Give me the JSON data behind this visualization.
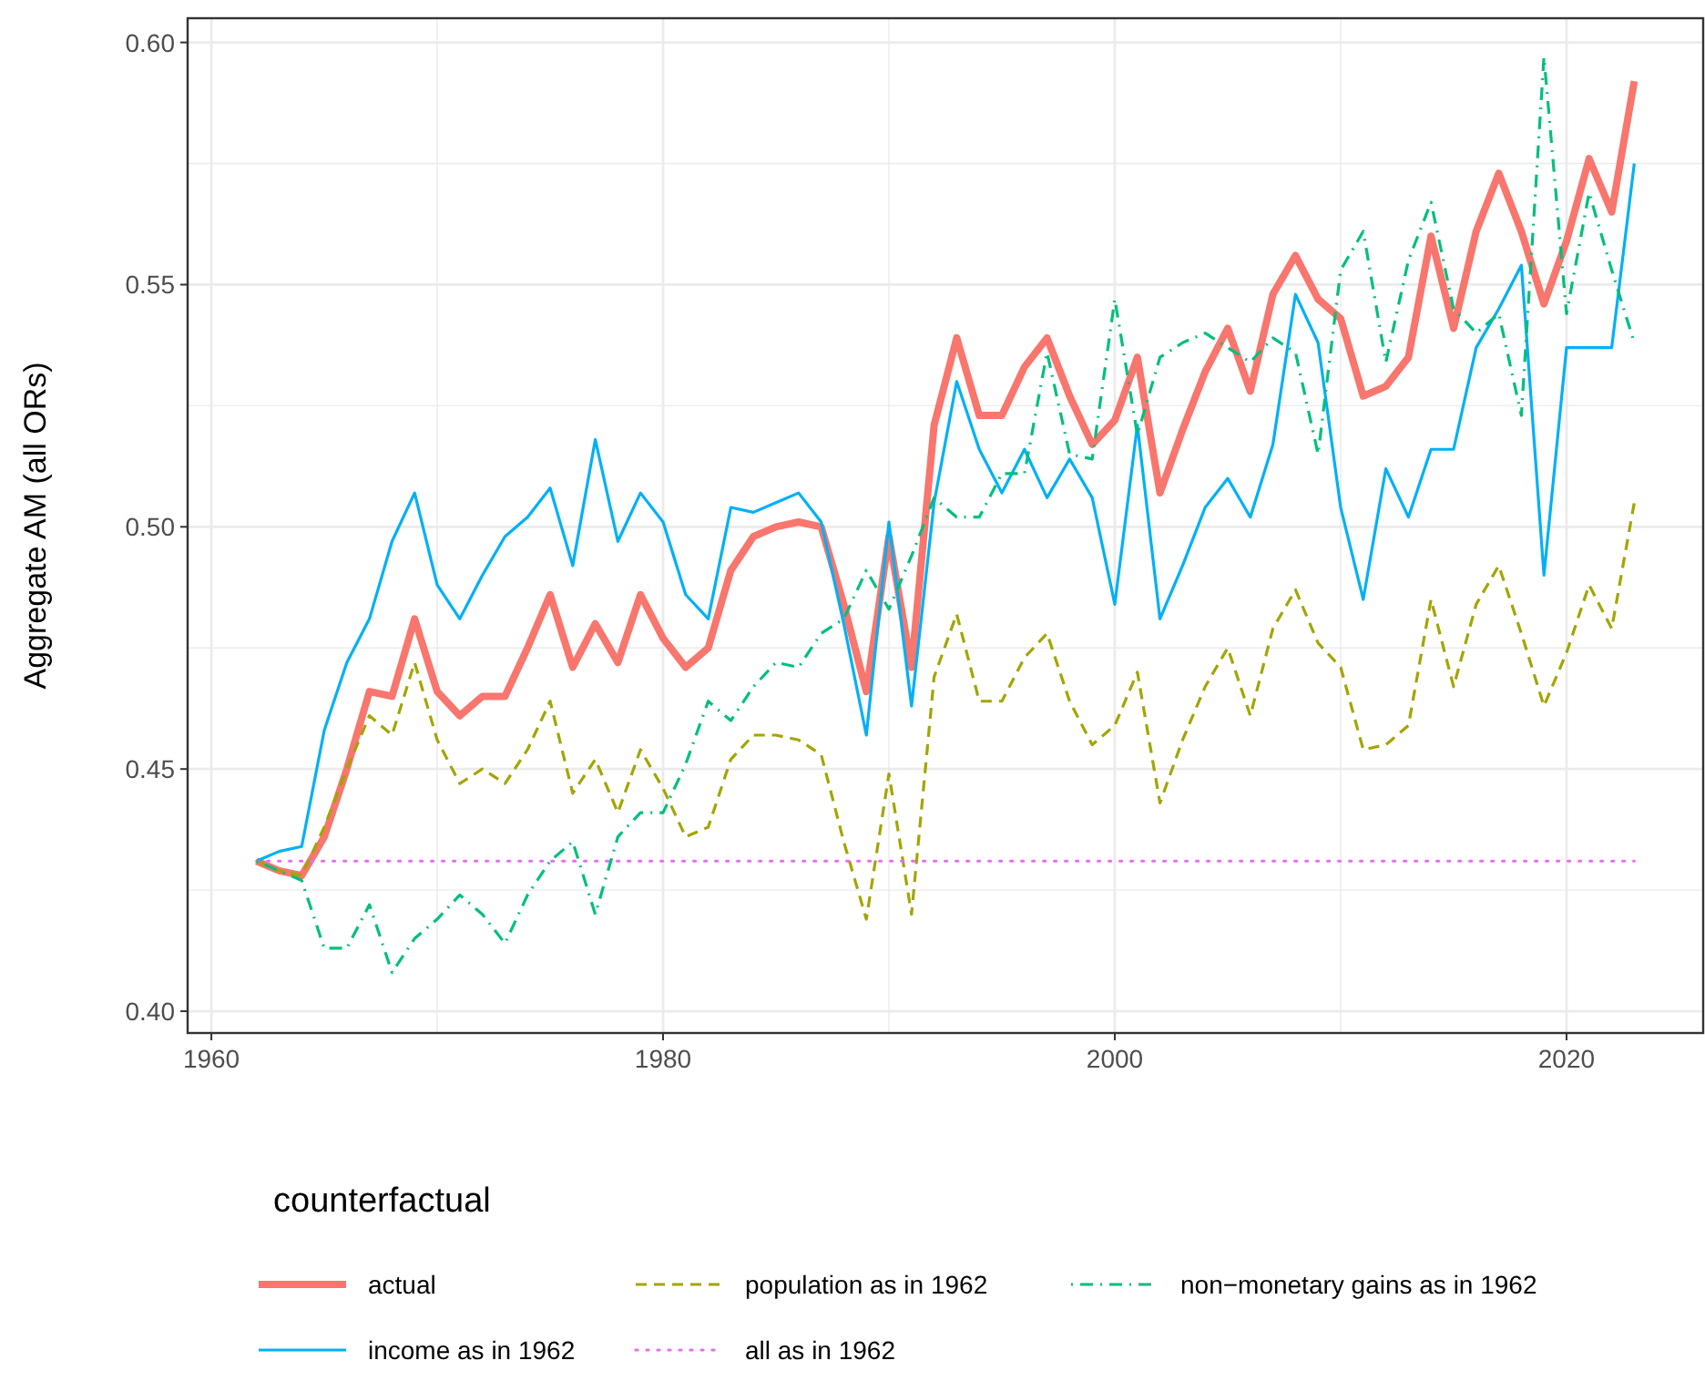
{
  "chart_data": {
    "type": "line",
    "ylabel": "Aggregate AM (all ORs)",
    "legend_title": "counterfactual",
    "legend": "bottom",
    "grid": true,
    "marker": "none",
    "x": [
      1962,
      1963,
      1964,
      1965,
      1966,
      1967,
      1968,
      1969,
      1970,
      1971,
      1972,
      1973,
      1974,
      1975,
      1976,
      1977,
      1978,
      1979,
      1980,
      1981,
      1982,
      1983,
      1984,
      1985,
      1986,
      1987,
      1988,
      1989,
      1990,
      1991,
      1992,
      1993,
      1994,
      1995,
      1996,
      1997,
      1998,
      1999,
      2000,
      2001,
      2002,
      2003,
      2004,
      2005,
      2006,
      2007,
      2008,
      2009,
      2010,
      2011,
      2012,
      2013,
      2014,
      2015,
      2016,
      2017,
      2018,
      2019,
      2020,
      2021,
      2022,
      2023
    ],
    "xlim": [
      1958.95,
      2026.05
    ],
    "xticks": [
      1960,
      {
        "value": 1970,
        "label": null
      },
      1980,
      {
        "value": 1990,
        "label": null
      },
      2000,
      {
        "value": 2010,
        "label": null
      },
      2020
    ],
    "ylim": [
      0.3955,
      0.605
    ],
    "yticks": [
      {
        "value": 0.4,
        "label": "0.40"
      },
      {
        "value": 0.425,
        "label": null
      },
      {
        "value": 0.45,
        "label": "0.45"
      },
      {
        "value": 0.475,
        "label": null
      },
      {
        "value": 0.5,
        "label": "0.50"
      },
      {
        "value": 0.525,
        "label": null
      },
      {
        "value": 0.55,
        "label": "0.55"
      },
      {
        "value": 0.575,
        "label": null
      },
      {
        "value": 0.6,
        "label": "0.60"
      }
    ],
    "series": [
      {
        "name": "actual",
        "color": "#f8766d",
        "line_style": "solid",
        "values": [
          0.431,
          0.429,
          0.428,
          0.436,
          0.45,
          0.466,
          0.465,
          0.481,
          0.466,
          0.461,
          0.465,
          0.465,
          0.475,
          0.486,
          0.471,
          0.48,
          0.472,
          0.486,
          0.477,
          0.471,
          0.475,
          0.491,
          0.498,
          0.5,
          0.501,
          0.5,
          0.484,
          0.466,
          0.498,
          0.471,
          0.521,
          0.539,
          0.523,
          0.523,
          0.533,
          0.539,
          0.527,
          0.517,
          0.522,
          0.535,
          0.507,
          0.52,
          0.532,
          0.541,
          0.528,
          0.548,
          0.556,
          0.547,
          0.543,
          0.527,
          0.529,
          0.535,
          0.56,
          0.541,
          0.561,
          0.573,
          0.561,
          0.546,
          0.559,
          0.576,
          0.565,
          0.592
        ]
      },
      {
        "name": "income as in 1962",
        "color": "#00b0f6",
        "line_style": "solid",
        "values": [
          0.431,
          0.433,
          0.434,
          0.458,
          0.472,
          0.481,
          0.497,
          0.507,
          0.488,
          0.481,
          0.49,
          0.498,
          0.502,
          0.508,
          0.492,
          0.518,
          0.497,
          0.507,
          0.501,
          0.486,
          0.481,
          0.504,
          0.503,
          0.505,
          0.507,
          0.501,
          0.48,
          0.457,
          0.501,
          0.463,
          0.505,
          0.53,
          0.516,
          0.507,
          0.516,
          0.506,
          0.514,
          0.506,
          0.484,
          0.521,
          0.481,
          0.492,
          0.504,
          0.51,
          0.502,
          0.517,
          0.548,
          0.538,
          0.504,
          0.485,
          0.512,
          0.502,
          0.516,
          0.516,
          0.537,
          0.545,
          0.554,
          0.49,
          0.537,
          0.537,
          0.537,
          0.575
        ]
      },
      {
        "name": "population as in 1962",
        "color": "#a3a500",
        "line_style": "dashed",
        "values": [
          0.431,
          0.429,
          0.428,
          0.438,
          0.45,
          0.461,
          0.457,
          0.472,
          0.456,
          0.447,
          0.45,
          0.447,
          0.454,
          0.464,
          0.445,
          0.452,
          0.441,
          0.454,
          0.446,
          0.436,
          0.438,
          0.452,
          0.457,
          0.457,
          0.456,
          0.453,
          0.435,
          0.419,
          0.449,
          0.42,
          0.469,
          0.482,
          0.464,
          0.464,
          0.473,
          0.478,
          0.464,
          0.455,
          0.459,
          0.47,
          0.443,
          0.456,
          0.467,
          0.475,
          0.461,
          0.479,
          0.487,
          0.476,
          0.471,
          0.454,
          0.455,
          0.459,
          0.485,
          0.467,
          0.484,
          0.492,
          0.478,
          0.463,
          0.474,
          0.488,
          0.479,
          0.505
        ]
      },
      {
        "name": "all as in 1962",
        "color": "#e76bf3",
        "line_style": "dotted",
        "values": [
          0.431,
          0.431,
          0.431,
          0.431,
          0.431,
          0.431,
          0.431,
          0.431,
          0.431,
          0.431,
          0.431,
          0.431,
          0.431,
          0.431,
          0.431,
          0.431,
          0.431,
          0.431,
          0.431,
          0.431,
          0.431,
          0.431,
          0.431,
          0.431,
          0.431,
          0.431,
          0.431,
          0.431,
          0.431,
          0.431,
          0.431,
          0.431,
          0.431,
          0.431,
          0.431,
          0.431,
          0.431,
          0.431,
          0.431,
          0.431,
          0.431,
          0.431,
          0.431,
          0.431,
          0.431,
          0.431,
          0.431,
          0.431,
          0.431,
          0.431,
          0.431,
          0.431,
          0.431,
          0.431,
          0.431,
          0.431,
          0.431,
          0.431,
          0.431,
          0.431,
          0.431,
          0.431
        ]
      },
      {
        "name": "non−monetary gains as in 1962",
        "color": "#00bf7d",
        "line_style": "dashdot",
        "values": [
          0.431,
          0.429,
          0.427,
          0.413,
          0.413,
          0.422,
          0.408,
          0.415,
          0.419,
          0.424,
          0.42,
          0.414,
          0.424,
          0.431,
          0.435,
          0.42,
          0.436,
          0.441,
          0.441,
          0.451,
          0.464,
          0.46,
          0.467,
          0.472,
          0.471,
          0.478,
          0.481,
          0.491,
          0.483,
          0.494,
          0.506,
          0.502,
          0.502,
          0.511,
          0.511,
          0.536,
          0.515,
          0.514,
          0.547,
          0.519,
          0.535,
          0.538,
          0.54,
          0.537,
          0.534,
          0.539,
          0.536,
          0.515,
          0.553,
          0.561,
          0.534,
          0.555,
          0.567,
          0.545,
          0.54,
          0.544,
          0.523,
          0.597,
          0.544,
          0.569,
          0.553,
          0.538
        ]
      }
    ]
  }
}
